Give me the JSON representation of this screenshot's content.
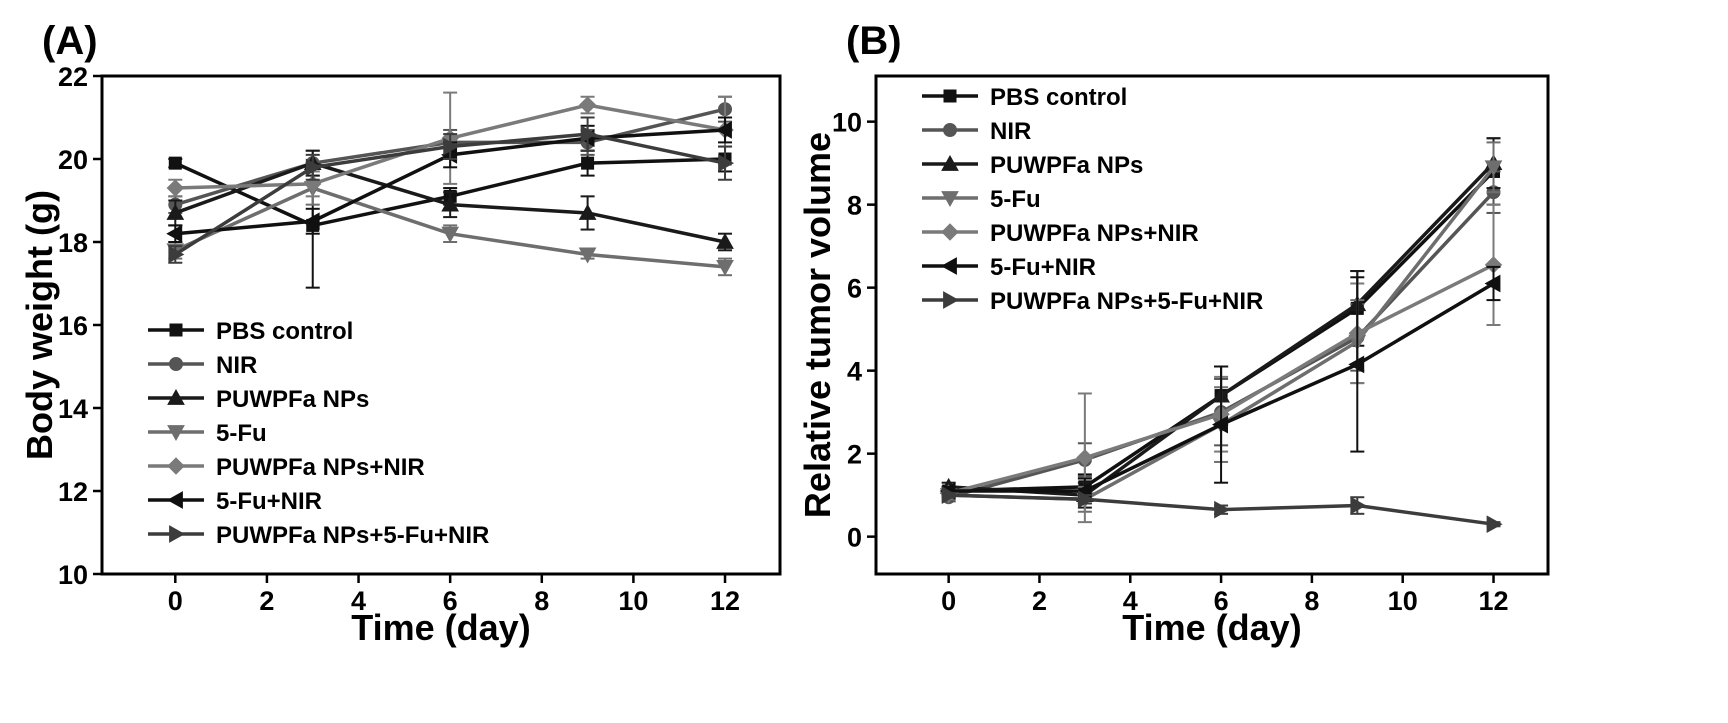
{
  "colors": {
    "PBS control": "#111111",
    "NIR": "#555555",
    "PUWPFa NPs": "#1a1a1a",
    "5-Fu": "#6e6e6e",
    "PUWPFa NPs+NIR": "#7a7a7a",
    "5-Fu+NIR": "#101010",
    "PUWPFa NPs+5-Fu+NIR": "#3c3c3c"
  },
  "chart_data": [
    {
      "panel": "(A)",
      "type": "line",
      "xlabel": "Time (day)",
      "ylabel": "Body weight (g)",
      "xlim": [
        -1.6,
        13.2
      ],
      "ylim": [
        10,
        22
      ],
      "xticks": [
        0,
        2,
        4,
        6,
        8,
        10,
        12
      ],
      "yticks": [
        10,
        12,
        14,
        16,
        18,
        20,
        22
      ],
      "legend_position": "bottom-left",
      "series": [
        {
          "name": "PBS control",
          "marker": "square",
          "x": [
            0,
            3,
            6,
            9,
            12
          ],
          "values": [
            19.9,
            18.4,
            19.1,
            19.9,
            20.0
          ],
          "err": [
            0.1,
            1.5,
            0.2,
            0.3,
            0.3
          ]
        },
        {
          "name": "NIR",
          "marker": "circle",
          "x": [
            0,
            3,
            6,
            9,
            12
          ],
          "values": [
            18.9,
            19.9,
            20.4,
            20.4,
            21.2
          ],
          "err": [
            0.2,
            0.3,
            0.3,
            0.3,
            0.3
          ]
        },
        {
          "name": "PUWPFa NPs",
          "marker": "triangle-up",
          "x": [
            0,
            3,
            6,
            9,
            12
          ],
          "values": [
            18.7,
            19.9,
            18.9,
            18.7,
            18.0
          ],
          "err": [
            0.3,
            0.3,
            0.3,
            0.4,
            0.2
          ]
        },
        {
          "name": "5-Fu",
          "marker": "triangle-down",
          "x": [
            0,
            3,
            6,
            9,
            12
          ],
          "values": [
            17.8,
            19.3,
            18.2,
            17.7,
            17.4
          ],
          "err": [
            0.2,
            0.4,
            0.2,
            0.1,
            0.2
          ]
        },
        {
          "name": "PUWPFa NPs+NIR",
          "marker": "diamond",
          "x": [
            0,
            3,
            6,
            9,
            12
          ],
          "values": [
            19.3,
            19.4,
            20.5,
            21.3,
            20.7
          ],
          "err": [
            0.2,
            0.3,
            1.1,
            0.2,
            0.8
          ]
        },
        {
          "name": "5-Fu+NIR",
          "marker": "triangle-left",
          "x": [
            0,
            3,
            6,
            9,
            12
          ],
          "values": [
            18.2,
            18.5,
            20.1,
            20.5,
            20.7
          ],
          "err": [
            0.2,
            0.3,
            0.3,
            0.3,
            0.3
          ]
        },
        {
          "name": "PUWPFa NPs+5-Fu+NIR",
          "marker": "triangle-right",
          "x": [
            0,
            3,
            6,
            9,
            12
          ],
          "values": [
            17.7,
            19.8,
            20.3,
            20.6,
            19.9
          ],
          "err": [
            0.2,
            0.3,
            0.3,
            0.4,
            0.4
          ]
        }
      ]
    },
    {
      "panel": "(B)",
      "type": "line",
      "xlabel": "Time (day)",
      "ylabel": "Relative tumor volume",
      "xlim": [
        -1.6,
        13.2
      ],
      "ylim": [
        -0.9,
        11.1
      ],
      "xticks": [
        0,
        2,
        4,
        6,
        8,
        10,
        12
      ],
      "yticks": [
        0,
        2,
        4,
        6,
        8,
        10
      ],
      "legend_position": "top-left",
      "series": [
        {
          "name": "PBS control",
          "marker": "square",
          "x": [
            0,
            3,
            6,
            9,
            12
          ],
          "values": [
            1.1,
            1.2,
            3.4,
            5.5,
            8.8
          ],
          "err": [
            0.1,
            0.3,
            0.7,
            0.9,
            0.8
          ]
        },
        {
          "name": "NIR",
          "marker": "circle",
          "x": [
            0,
            3,
            6,
            9,
            12
          ],
          "values": [
            0.95,
            1.85,
            3.0,
            4.8,
            8.3
          ],
          "err": [
            0.1,
            0.4,
            0.8,
            0.8,
            0.5
          ]
        },
        {
          "name": "PUWPFa NPs",
          "marker": "triangle-up",
          "x": [
            0,
            3,
            6,
            9,
            12
          ],
          "values": [
            1.2,
            1.0,
            3.4,
            5.6,
            9.0
          ],
          "err": [
            0.1,
            0.3,
            0.7,
            0.8,
            0.6
          ]
        },
        {
          "name": "5-Fu",
          "marker": "triangle-down",
          "x": [
            0,
            3,
            6,
            9,
            12
          ],
          "values": [
            1.0,
            0.9,
            2.7,
            4.7,
            8.9
          ],
          "err": [
            0.1,
            0.3,
            0.9,
            1.0,
            0.6
          ]
        },
        {
          "name": "PUWPFa NPs+NIR",
          "marker": "diamond",
          "x": [
            0,
            3,
            6,
            9,
            12
          ],
          "values": [
            1.05,
            1.9,
            2.95,
            4.9,
            6.55
          ],
          "err": [
            0.1,
            1.55,
            0.9,
            1.2,
            1.45
          ]
        },
        {
          "name": "5-Fu+NIR",
          "marker": "triangle-left",
          "x": [
            0,
            3,
            6,
            9,
            12
          ],
          "values": [
            1.1,
            1.1,
            2.7,
            4.15,
            6.1
          ],
          "err": [
            0.1,
            0.3,
            1.4,
            2.1,
            0.4
          ]
        },
        {
          "name": "PUWPFa NPs+5-Fu+NIR",
          "marker": "triangle-right",
          "x": [
            0,
            3,
            6,
            9,
            12
          ],
          "values": [
            1.0,
            0.9,
            0.65,
            0.75,
            0.3
          ],
          "err": [
            0.05,
            0.1,
            0.1,
            0.2,
            0.05
          ]
        }
      ]
    }
  ]
}
